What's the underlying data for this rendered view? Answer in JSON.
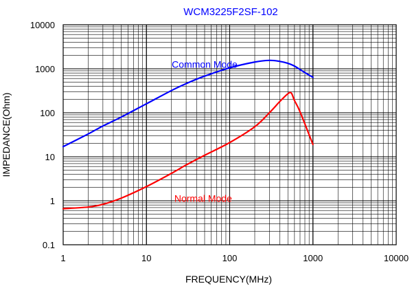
{
  "chart_data": {
    "type": "line",
    "title": "WCM3225F2SF-102",
    "xlabel": "FREQUENCY(MHz)",
    "ylabel": "IMPEDANCE(Ohm)",
    "xscale": "log",
    "yscale": "log",
    "xlim": [
      1,
      10000
    ],
    "ylim": [
      0.1,
      10000
    ],
    "grid": true,
    "x_tick_labels": [
      "1",
      "10",
      "100",
      "1000",
      "10000"
    ],
    "y_tick_labels": [
      "0.1",
      "1",
      "10",
      "100",
      "1000",
      "10000"
    ],
    "title_color": "#0000ff",
    "series": [
      {
        "name": "Common Mode",
        "color": "#0000ff",
        "x": [
          1,
          2,
          3,
          5,
          10,
          20,
          30,
          50,
          100,
          200,
          300,
          400,
          500,
          600,
          700,
          800,
          1000
        ],
        "y": [
          17,
          33,
          50,
          80,
          160,
          320,
          460,
          680,
          1050,
          1420,
          1550,
          1470,
          1330,
          1150,
          960,
          820,
          640
        ]
      },
      {
        "name": "Normal Mode",
        "color": "#ff0000",
        "x": [
          1,
          2,
          3,
          5,
          10,
          20,
          30,
          50,
          100,
          200,
          300,
          400,
          500,
          550,
          600,
          700,
          1000
        ],
        "y": [
          0.66,
          0.72,
          0.83,
          1.15,
          2.1,
          4.2,
          6.5,
          10.8,
          21,
          48,
          100,
          180,
          270,
          280,
          190,
          105,
          19
        ]
      }
    ],
    "annotations": [
      {
        "text": "Common Mode",
        "color": "#0000ff",
        "x": 50,
        "y": 1050
      },
      {
        "text": "Normal Mode",
        "color": "#ff0000",
        "x": 48,
        "y": 0.95
      }
    ]
  }
}
